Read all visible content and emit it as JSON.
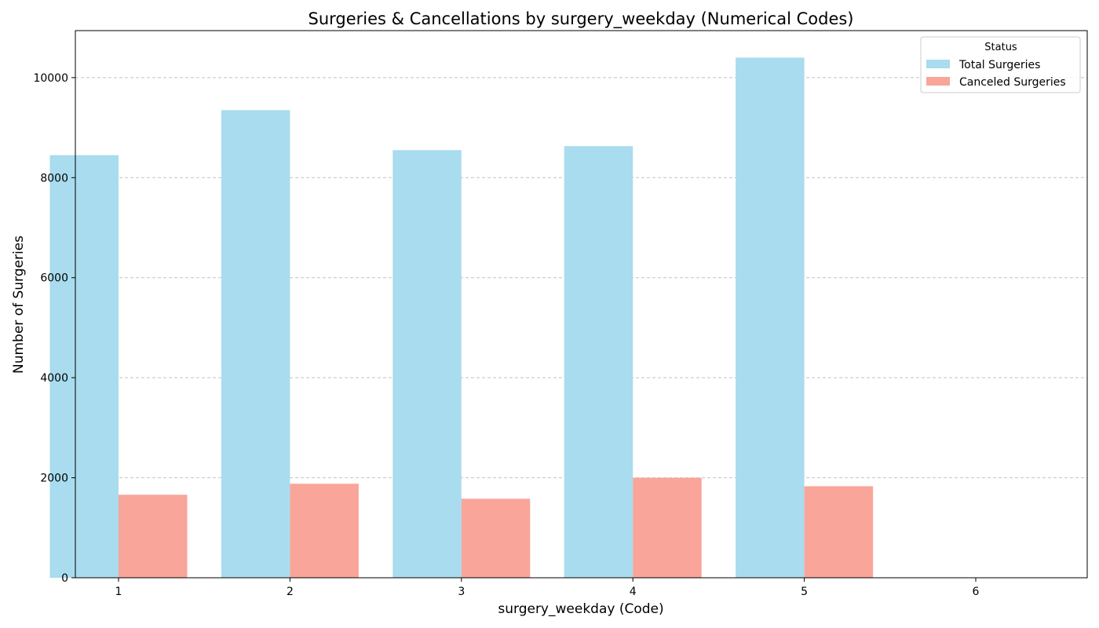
{
  "chart_data": {
    "type": "bar",
    "title": "Surgeries & Cancellations by surgery_weekday (Numerical Codes)",
    "xlabel": "surgery_weekday (Code)",
    "ylabel": "Number of Surgeries",
    "categories": [
      "1",
      "2",
      "3",
      "4",
      "5",
      "6"
    ],
    "series": [
      {
        "name": "Total Surgeries",
        "color": "#a8dcee",
        "values": [
          8450,
          9350,
          8550,
          8630,
          10400,
          8
        ]
      },
      {
        "name": "Canceled Surgeries",
        "color": "#f9a59a",
        "values": [
          1660,
          1880,
          1580,
          2000,
          1830,
          0
        ]
      }
    ],
    "yticks": [
      0,
      2000,
      4000,
      6000,
      8000,
      10000
    ],
    "ylim": [
      0,
      10940
    ],
    "grid": "y-dashed",
    "legend": {
      "title": "Status",
      "position": "top-right"
    }
  }
}
